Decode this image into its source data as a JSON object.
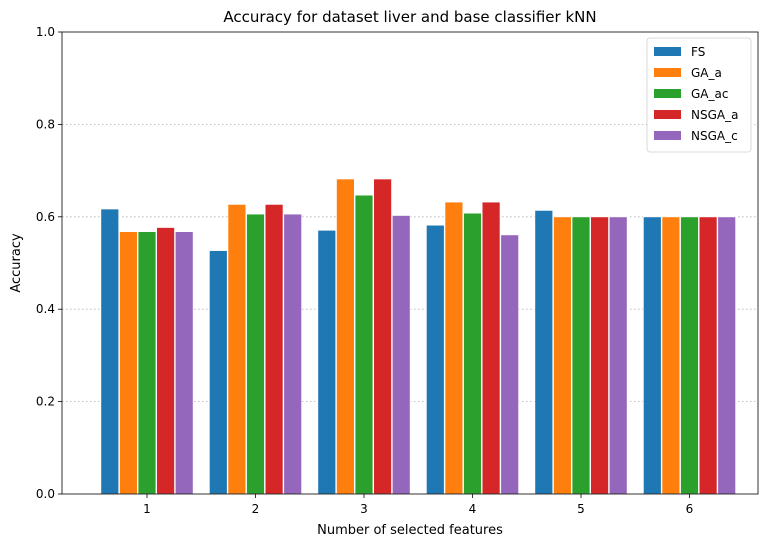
{
  "chart_data": {
    "type": "bar",
    "title": "Accuracy for dataset liver and base classifier kNN",
    "xlabel": "Number of selected features",
    "ylabel": "Accuracy",
    "categories": [
      "1",
      "2",
      "3",
      "4",
      "5",
      "6"
    ],
    "ylim": [
      0,
      1.0
    ],
    "yticks": [
      "0.0",
      "0.2",
      "0.4",
      "0.6",
      "0.8",
      "1.0"
    ],
    "grid": "horizontal-dotted",
    "legend_position": "top-right",
    "series": [
      {
        "name": "FS",
        "color": "#1f77b4",
        "values": [
          0.617,
          0.527,
          0.571,
          0.582,
          0.614,
          0.6
        ]
      },
      {
        "name": "GA_a",
        "color": "#ff7f0e",
        "values": [
          0.568,
          0.627,
          0.682,
          0.632,
          0.6,
          0.6
        ]
      },
      {
        "name": "GA_ac",
        "color": "#2ca02c",
        "values": [
          0.568,
          0.606,
          0.647,
          0.608,
          0.6,
          0.6
        ]
      },
      {
        "name": "NSGA_a",
        "color": "#d62728",
        "values": [
          0.577,
          0.627,
          0.682,
          0.632,
          0.6,
          0.6
        ]
      },
      {
        "name": "NSGA_c",
        "color": "#9467bd",
        "values": [
          0.568,
          0.606,
          0.603,
          0.561,
          0.6,
          0.6
        ]
      }
    ]
  }
}
